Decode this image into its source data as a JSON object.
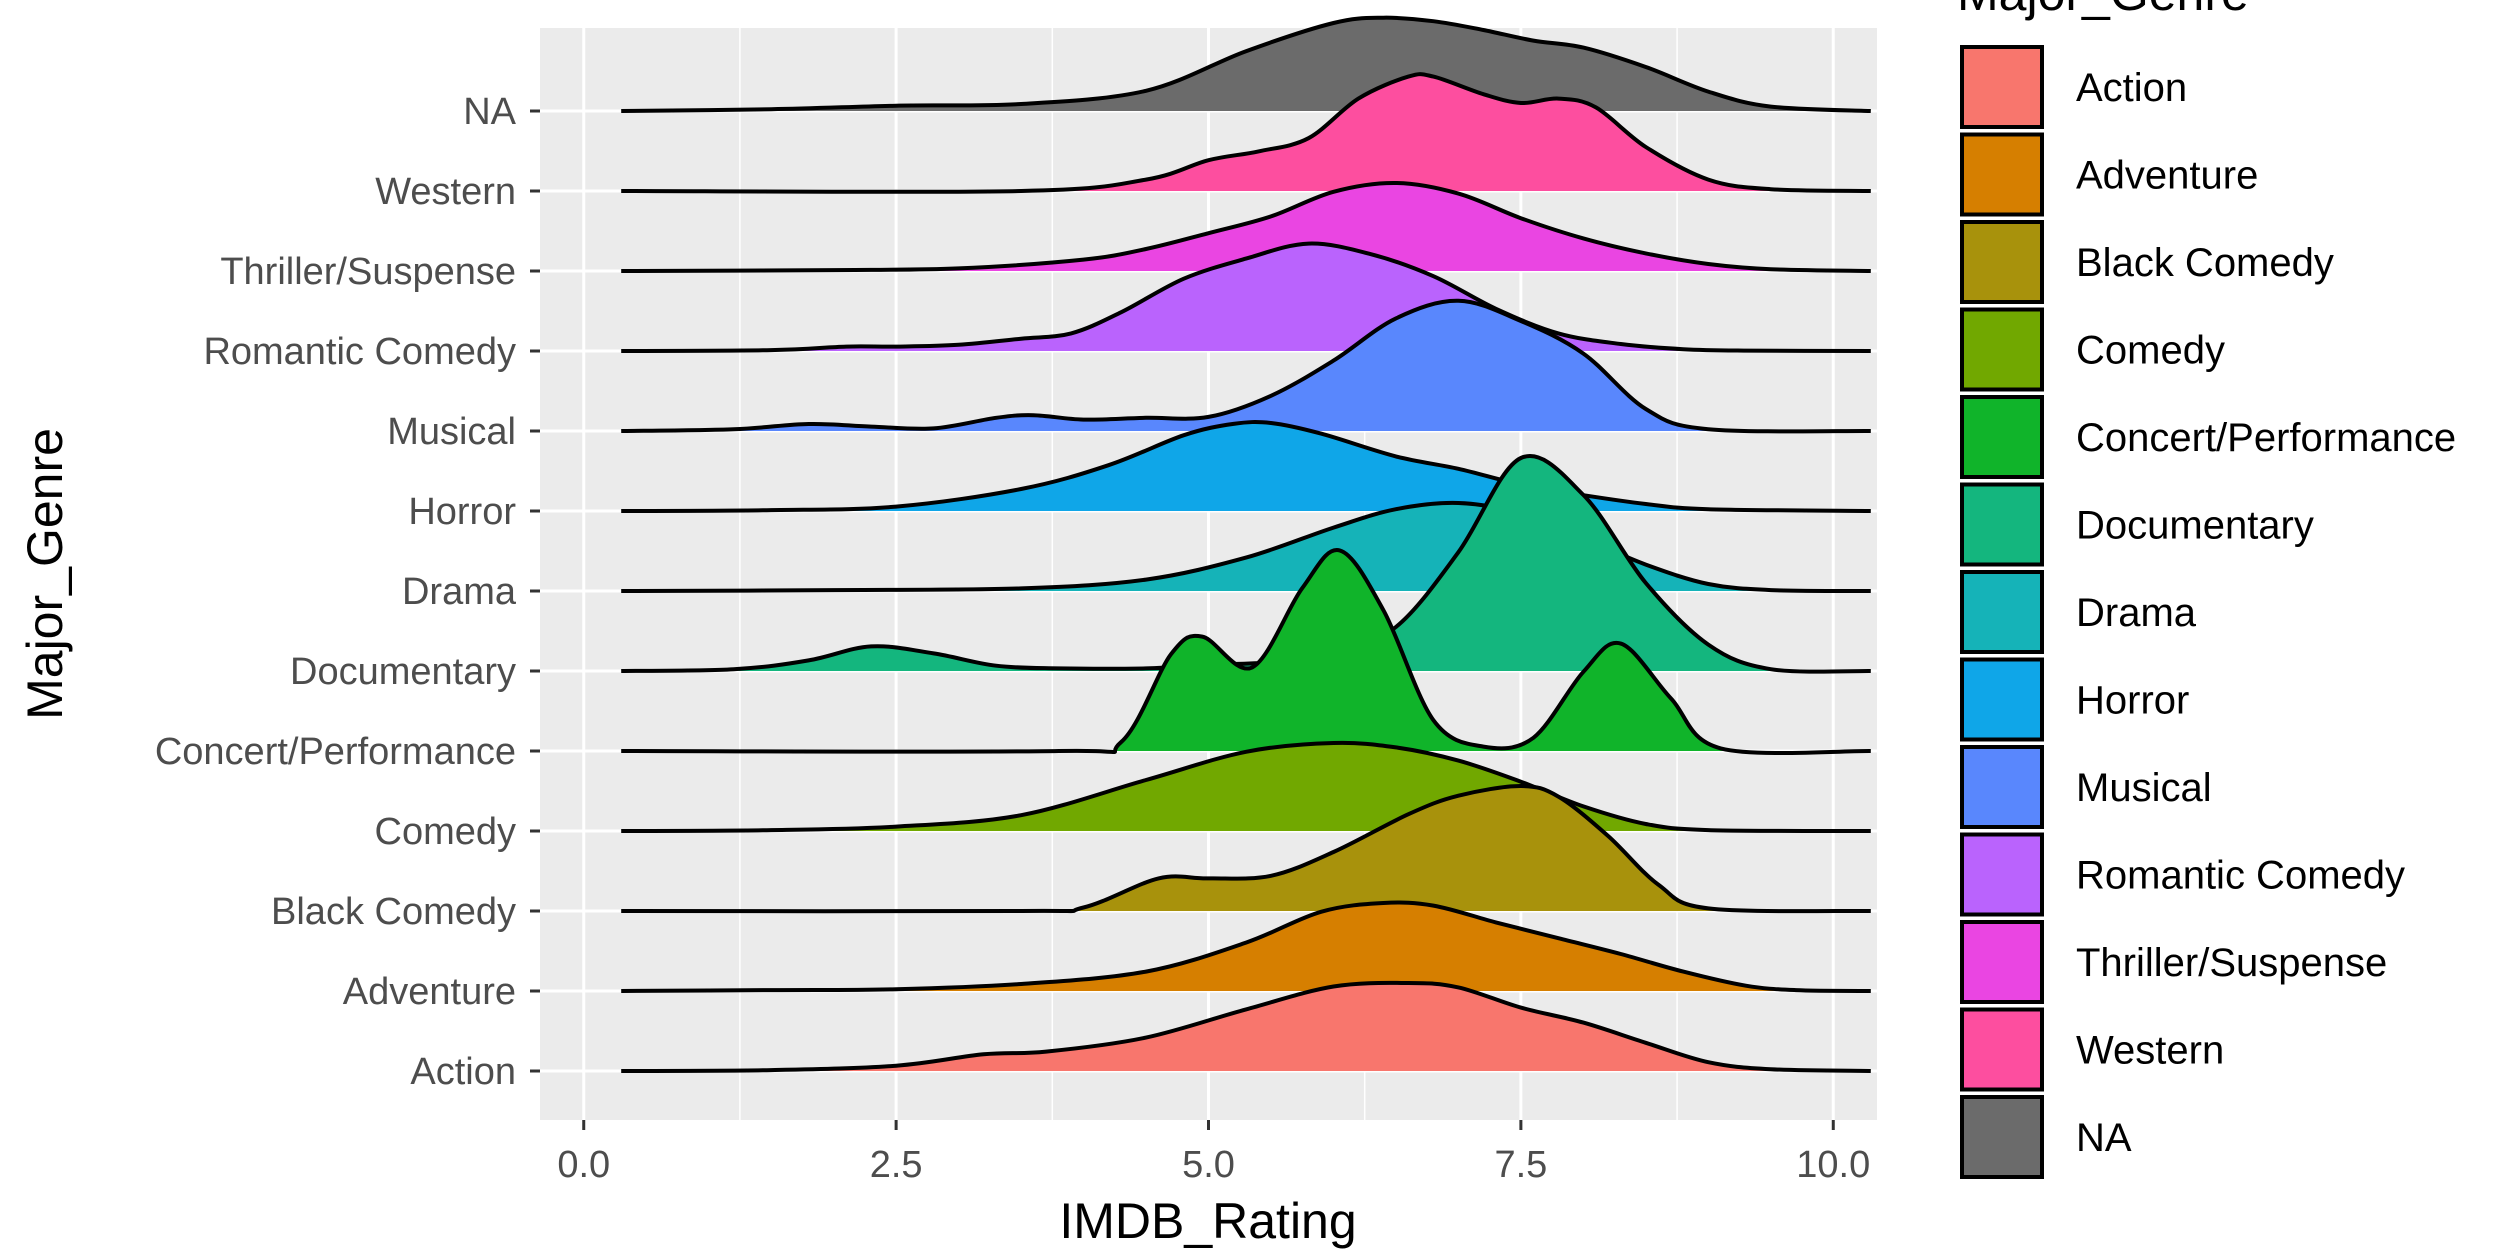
{
  "chart_data": {
    "type": "ridgeline",
    "xlabel": "IMDB_Rating",
    "ylabel": "Major_Genre",
    "xlim": [
      -0.35,
      10.35
    ],
    "x_ticks": [
      0,
      2.5,
      5,
      7.5,
      10
    ],
    "x_tick_labels": [
      "0.0",
      "2.5",
      "5.0",
      "7.5",
      "10.0"
    ],
    "grid": true,
    "legend_title": "Major_Genre",
    "legend_position": "right",
    "series": [
      {
        "name": "Action",
        "color": "#F8766D",
        "x": [
          0.3,
          1.5,
          2.5,
          3.2,
          3.7,
          4.5,
          5.3,
          6.0,
          6.6,
          7.0,
          7.5,
          8.0,
          8.5,
          9.0,
          9.5,
          10.3
        ],
        "density": [
          0,
          0.01,
          0.06,
          0.19,
          0.22,
          0.38,
          0.7,
          0.96,
          1.0,
          0.95,
          0.72,
          0.55,
          0.32,
          0.1,
          0.02,
          0
        ]
      },
      {
        "name": "Adventure",
        "color": "#D67F00",
        "x": [
          0.3,
          1.5,
          2.5,
          3.5,
          4.5,
          5.3,
          5.9,
          6.4,
          6.8,
          7.3,
          7.8,
          8.3,
          8.8,
          9.3,
          9.7,
          10.3
        ],
        "density": [
          0,
          0.01,
          0.02,
          0.08,
          0.22,
          0.55,
          0.9,
          1.0,
          0.97,
          0.78,
          0.6,
          0.42,
          0.22,
          0.06,
          0.01,
          0
        ]
      },
      {
        "name": "Black Comedy",
        "color": "#A8920C",
        "x": [
          0.3,
          3.5,
          4.0,
          4.6,
          5.0,
          5.5,
          6.0,
          6.6,
          7.0,
          7.5,
          7.8,
          8.2,
          8.6,
          9.0,
          10.3
        ],
        "density": [
          0,
          0,
          0.04,
          0.37,
          0.37,
          0.4,
          0.67,
          1.1,
          1.31,
          1.42,
          1.3,
          0.85,
          0.3,
          0.03,
          0
        ]
      },
      {
        "name": "Comedy",
        "color": "#71A800",
        "x": [
          0.3,
          1.5,
          2.5,
          3.5,
          4.5,
          5.3,
          6.0,
          6.5,
          7.0,
          7.5,
          8.0,
          8.5,
          9.0,
          10.3
        ],
        "density": [
          0,
          0.01,
          0.05,
          0.18,
          0.58,
          0.9,
          1.0,
          0.95,
          0.8,
          0.56,
          0.28,
          0.08,
          0.01,
          0
        ]
      },
      {
        "name": "Concert/Performance",
        "color": "#10B42A",
        "x": [
          0.3,
          3.8,
          4.3,
          4.7,
          4.95,
          5.35,
          5.75,
          6.05,
          6.4,
          6.8,
          7.2,
          7.6,
          8.0,
          8.3,
          8.7,
          9.1,
          10.3
        ],
        "density": [
          0,
          0,
          0.1,
          1.1,
          1.3,
          0.95,
          1.85,
          2.28,
          1.6,
          0.35,
          0.05,
          0.15,
          0.9,
          1.22,
          0.6,
          0.03,
          0
        ]
      },
      {
        "name": "Documentary",
        "color": "#14B67E",
        "x": [
          0.3,
          1.2,
          1.8,
          2.3,
          2.8,
          3.3,
          3.8,
          4.5,
          5.0,
          5.5,
          6.0,
          6.5,
          7.0,
          7.5,
          8.0,
          8.5,
          9.0,
          9.5,
          10.3
        ],
        "density": [
          0,
          0.02,
          0.12,
          0.28,
          0.2,
          0.06,
          0.03,
          0.03,
          0.07,
          0.1,
          0.2,
          0.5,
          1.35,
          2.42,
          2.0,
          1.0,
          0.3,
          0.02,
          0
        ]
      },
      {
        "name": "Drama",
        "color": "#15B3B8",
        "x": [
          0.3,
          2.0,
          3.5,
          4.5,
          5.3,
          6.0,
          6.5,
          7.0,
          7.5,
          8.0,
          8.5,
          9.0,
          9.5,
          10.3
        ],
        "density": [
          0,
          0.01,
          0.03,
          0.13,
          0.38,
          0.72,
          0.93,
          1.0,
          0.88,
          0.6,
          0.3,
          0.08,
          0.01,
          0
        ]
      },
      {
        "name": "Horror",
        "color": "#0FA6E8",
        "x": [
          0.3,
          1.5,
          2.5,
          3.5,
          4.2,
          4.8,
          5.2,
          5.5,
          5.9,
          6.5,
          7.0,
          7.5,
          8.0,
          8.5,
          9.0,
          10.3
        ],
        "density": [
          0,
          0.01,
          0.05,
          0.25,
          0.52,
          0.86,
          0.99,
          1.0,
          0.88,
          0.62,
          0.48,
          0.3,
          0.18,
          0.08,
          0.02,
          0
        ]
      },
      {
        "name": "Musical",
        "color": "#5987FD",
        "x": [
          0.3,
          1.2,
          1.8,
          2.3,
          2.8,
          3.3,
          3.6,
          4.0,
          4.5,
          5.0,
          5.5,
          6.0,
          6.5,
          7.0,
          7.5,
          8.0,
          8.5,
          9.0,
          10.3
        ],
        "density": [
          0,
          0.02,
          0.08,
          0.05,
          0.03,
          0.15,
          0.18,
          0.13,
          0.15,
          0.16,
          0.4,
          0.8,
          1.28,
          1.48,
          1.25,
          0.88,
          0.25,
          0.02,
          0
        ]
      },
      {
        "name": "Romantic Comedy",
        "color": "#BA63FD",
        "x": [
          0.3,
          1.5,
          2.1,
          2.5,
          3.0,
          3.5,
          3.9,
          4.3,
          4.8,
          5.3,
          5.8,
          6.3,
          6.8,
          7.3,
          7.8,
          8.3,
          8.8,
          9.3,
          10.3
        ],
        "density": [
          0,
          0.01,
          0.05,
          0.05,
          0.07,
          0.14,
          0.2,
          0.44,
          0.82,
          1.05,
          1.22,
          1.1,
          0.85,
          0.48,
          0.2,
          0.08,
          0.02,
          0.005,
          0
        ]
      },
      {
        "name": "Thriller/Suspense",
        "color": "#EA45E2",
        "x": [
          0.3,
          2.0,
          3.0,
          4.0,
          4.5,
          5.0,
          5.5,
          6.0,
          6.5,
          7.0,
          7.5,
          8.0,
          8.5,
          9.0,
          9.5,
          10.3
        ],
        "density": [
          0,
          0.01,
          0.03,
          0.13,
          0.25,
          0.43,
          0.62,
          0.9,
          1.0,
          0.88,
          0.6,
          0.37,
          0.2,
          0.08,
          0.02,
          0
        ]
      },
      {
        "name": "Western",
        "color": "#FD4E9F",
        "x": [
          0.3,
          3.5,
          4.5,
          5.0,
          5.4,
          5.8,
          6.2,
          6.6,
          6.8,
          7.2,
          7.5,
          7.8,
          8.1,
          8.5,
          9.0,
          9.5,
          10.3
        ],
        "density": [
          0,
          0,
          0.13,
          0.35,
          0.45,
          0.6,
          1.05,
          1.3,
          1.3,
          1.1,
          1.0,
          1.05,
          0.95,
          0.5,
          0.13,
          0.02,
          0
        ]
      },
      {
        "name": "NA",
        "color": "#6B6B6B",
        "x": [
          0.3,
          1.5,
          2.5,
          3.5,
          4.5,
          5.3,
          6.0,
          6.4,
          6.8,
          7.2,
          7.6,
          8.0,
          8.5,
          9.0,
          9.5,
          10.3
        ],
        "density": [
          0,
          0.02,
          0.06,
          0.08,
          0.23,
          0.68,
          1.0,
          1.06,
          1.02,
          0.92,
          0.8,
          0.72,
          0.5,
          0.22,
          0.05,
          0
        ]
      }
    ]
  }
}
